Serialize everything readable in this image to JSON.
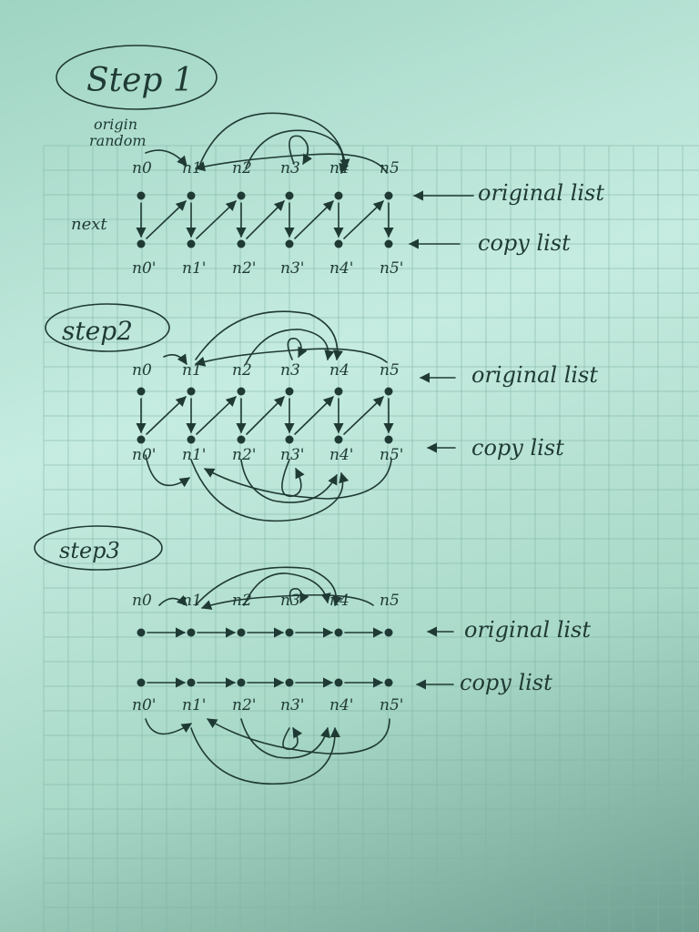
{
  "steps": [
    {
      "title": "Step 1",
      "pointer_labels": {
        "random": "origin\nrandom",
        "next": "next"
      },
      "original_nodes": [
        "n0",
        "n1",
        "n2",
        "n3",
        "n4",
        "n5"
      ],
      "copy_nodes": [
        "n0'",
        "n1'",
        "n2'",
        "n3'",
        "n4'",
        "n5'"
      ],
      "original_label": "original list",
      "copy_label": "copy list"
    },
    {
      "title": "step2",
      "original_nodes": [
        "n0",
        "n1",
        "n2",
        "n3",
        "n4",
        "n5"
      ],
      "copy_nodes": [
        "n0'",
        "n1'",
        "n2'",
        "n3'",
        "n4'",
        "n5'"
      ],
      "original_label": "original list",
      "copy_label": "copy list"
    },
    {
      "title": "step3",
      "original_nodes": [
        "n0",
        "n1",
        "n2",
        "n3",
        "n4",
        "n5"
      ],
      "copy_nodes": [
        "n0'",
        "n1'",
        "n2'",
        "n3'",
        "n4'",
        "n5'"
      ],
      "original_label": "original list",
      "copy_label": "copy list"
    }
  ],
  "colors": {
    "ink": "#1f3a34",
    "paper": "#bfe6d9",
    "grid": "#7fb3a3"
  }
}
